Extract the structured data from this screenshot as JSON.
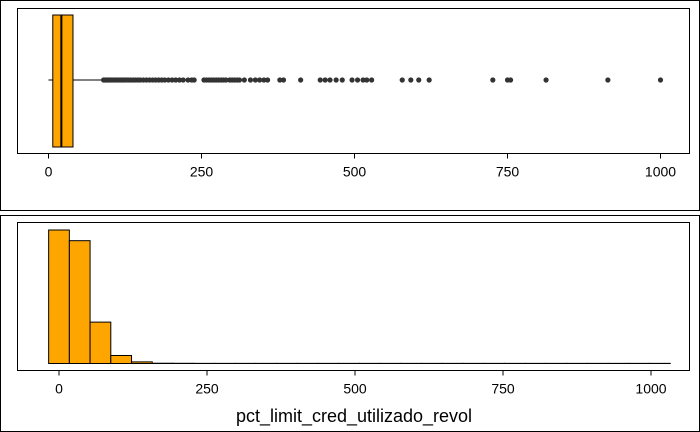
{
  "colors": {
    "fill": "#FFA500",
    "outlier": "#333333",
    "stroke": "#000000"
  },
  "chart_data": [
    {
      "type": "boxplot",
      "xlim": [
        -10,
        1000
      ],
      "xticks": [
        0,
        250,
        500,
        750,
        1000
      ],
      "tick_labels": [
        "0",
        "250",
        "500",
        "750",
        "1000"
      ],
      "xlabel": "",
      "stats": {
        "min": 0,
        "q1": 7,
        "median": 21,
        "q3": 40,
        "whisker_high": 89
      },
      "outliers": [
        90,
        92,
        94,
        96,
        98,
        100,
        103,
        106,
        109,
        112,
        115,
        118,
        121,
        124,
        127,
        130,
        134,
        138,
        142,
        146,
        150,
        155,
        160,
        165,
        170,
        175,
        180,
        185,
        190,
        196,
        202,
        208,
        214,
        220,
        228,
        234,
        238,
        254,
        258,
        262,
        266,
        270,
        274,
        278,
        282,
        286,
        290,
        296,
        300,
        304,
        308,
        312,
        320,
        330,
        338,
        345,
        352,
        358,
        378,
        384,
        412,
        444,
        452,
        460,
        470,
        480,
        496,
        505,
        514,
        520,
        528,
        578,
        592,
        605,
        622,
        726,
        750,
        755,
        813,
        914,
        1000
      ]
    },
    {
      "type": "histogram",
      "xlim": [
        -10,
        1000
      ],
      "xticks": [
        0,
        250,
        500,
        750,
        1000
      ],
      "tick_labels": [
        "0",
        "250",
        "500",
        "750",
        "1000"
      ],
      "xlabel": "pct_limit_cred_utilizado_revol",
      "bin_width": 35,
      "bin_start": -17.5,
      "counts": [
        100,
        92,
        31,
        6,
        1.2,
        0.2,
        0.15,
        0.1,
        0.1,
        0.1,
        0.1,
        0.1,
        0.1,
        0.1,
        0.1,
        0.1,
        0.1,
        0.1,
        0.1,
        0.1,
        0.1,
        0.1,
        0.1,
        0.1,
        0.1,
        0.1,
        0.1,
        0.1,
        0.1,
        0.1
      ],
      "ymax": 100
    }
  ]
}
